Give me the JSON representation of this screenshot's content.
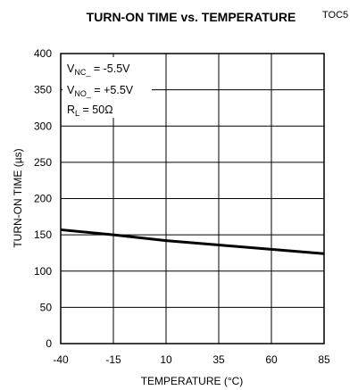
{
  "chart_data": {
    "type": "line",
    "title": "TURN-ON TIME vs. TEMPERATURE",
    "figure_id": "TOC5",
    "xlabel": "TEMPERATURE (°C)",
    "ylabel": "TURN-ON TIME (µs)",
    "xlim": [
      -40,
      85
    ],
    "ylim": [
      0,
      400
    ],
    "xticks": [
      -40,
      -15,
      10,
      35,
      60,
      85
    ],
    "yticks": [
      0,
      50,
      100,
      150,
      200,
      250,
      300,
      350,
      400
    ],
    "grid": true,
    "annotations": {
      "vnc": {
        "base": "V",
        "sub": "NC_",
        "rest": " = -5.5V"
      },
      "vno": {
        "base": "V",
        "sub": "NO_",
        "rest": " = +5.5V"
      },
      "rl": {
        "base": "R",
        "sub": "L",
        "rest": " = 50Ω"
      }
    },
    "series": [
      {
        "x": [
          -40,
          -15,
          10,
          35,
          60,
          85
        ],
        "y": [
          157,
          150,
          142,
          136,
          130,
          124
        ]
      }
    ]
  }
}
